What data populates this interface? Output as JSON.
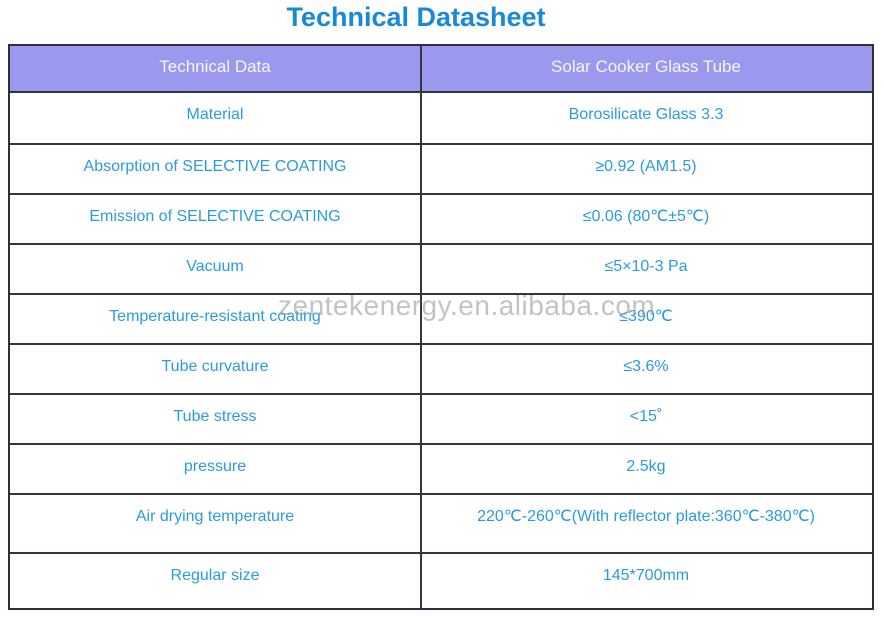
{
  "page": {
    "title": "Technical Datasheet"
  },
  "watermark": {
    "text": "zentekenergy.en.alibaba.com"
  },
  "table": {
    "headers": [
      "Technical Data",
      "Solar Cooker Glass Tube"
    ],
    "rows": [
      {
        "param": "Material",
        "value": "Borosilicate Glass 3.3"
      },
      {
        "param": "Absorption of SELECTIVE COATING",
        "value": "≥0.92 (AM1.5)"
      },
      {
        "param": "Emission of SELECTIVE COATING",
        "value": "≤0.06 (80℃±5℃)"
      },
      {
        "param": "Vacuum",
        "value": "≤5×10-3 Pa"
      },
      {
        "param": "Temperature-resistant coating",
        "value": "≤390℃"
      },
      {
        "param": "Tube curvature",
        "value": "≤3.6%"
      },
      {
        "param": "Tube stress",
        "value": "<15˚"
      },
      {
        "param": "pressure",
        "value": "2.5kg"
      },
      {
        "param": "Air drying temperature",
        "value": "220℃-260℃(With reflector plate:360℃-380℃)"
      },
      {
        "param": "Regular size",
        "value": "145*700mm"
      }
    ]
  },
  "colors": {
    "title_text": "#1789d9",
    "cell_text": "#2b9cdb",
    "header_background": "#9b99ee",
    "header_text": "#f7f5ff",
    "border": "#35353f",
    "watermark_text": "#9f9f9f"
  }
}
